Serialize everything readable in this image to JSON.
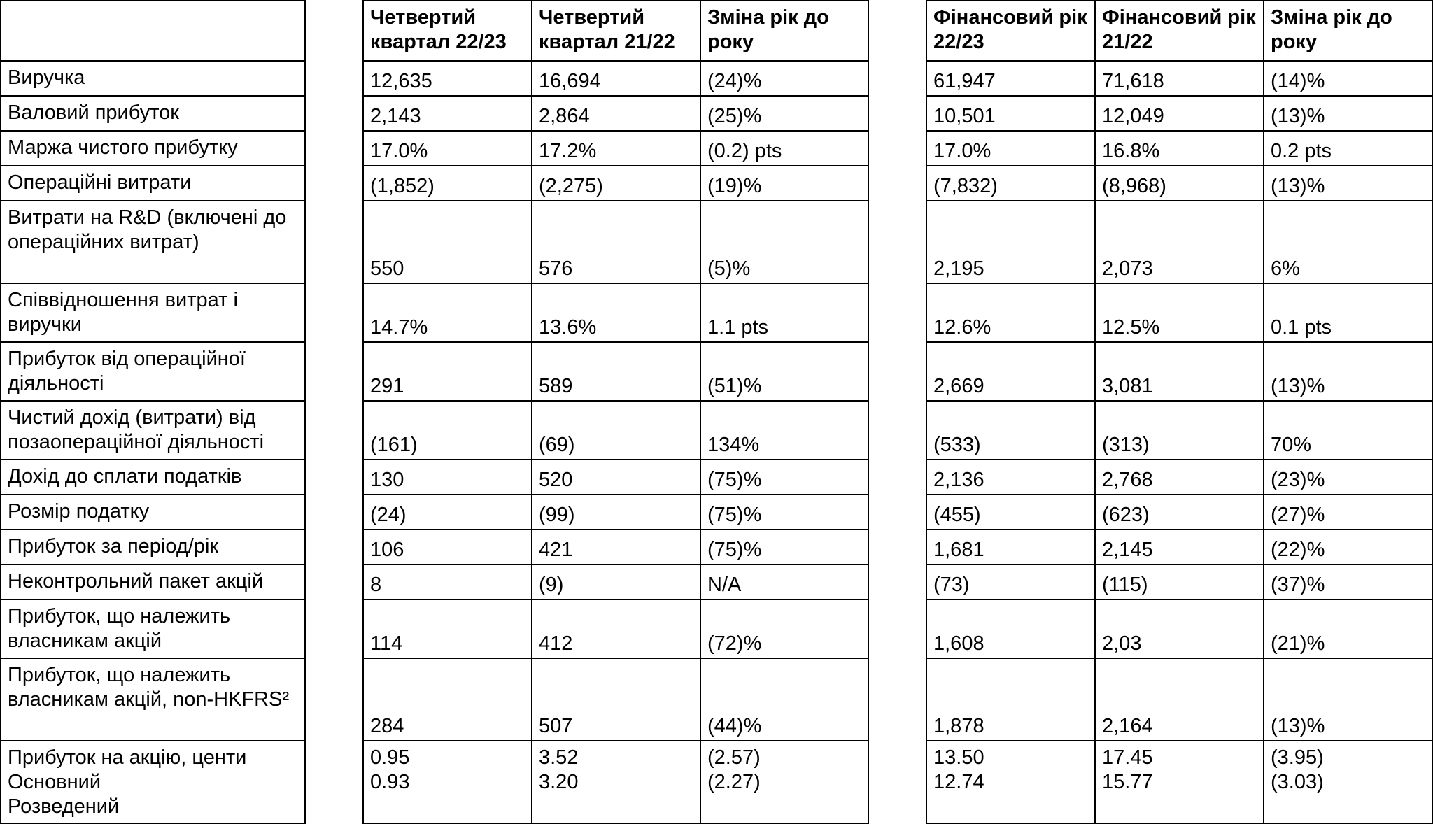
{
  "headers": {
    "q_2223": "Четвертий квартал 22/23",
    "q_2122": "Четвертий квартал 21/22",
    "q_change": "Зміна рік до року",
    "fy_2223": "Фінансовий рік 22/23",
    "fy_2122": "Фінансовий рік 21/22",
    "fy_change": "Зміна рік до року"
  },
  "rows": [
    {
      "label": "Виручка",
      "values": [
        "12,635",
        "16,694",
        "(24)%",
        "61,947",
        "71,618",
        "(14)%"
      ]
    },
    {
      "label": "Валовий прибуток",
      "values": [
        "2,143",
        "2,864",
        "(25)%",
        "10,501",
        "12,049",
        "(13)%"
      ]
    },
    {
      "label": "Маржа чистого прибутку",
      "values": [
        "17.0%",
        "17.2%",
        "(0.2) pts",
        "17.0%",
        "16.8%",
        "0.2 pts"
      ]
    },
    {
      "label": "Операційні витрати",
      "values": [
        "(1,852)",
        "(2,275)",
        "(19)%",
        "(7,832)",
        "(8,968)",
        "(13)%"
      ]
    },
    {
      "label": "Витрати на R&D (включені до операційних витрат)",
      "values": [
        "550",
        "576",
        "(5)%",
        "2,195",
        "2,073",
        "6%"
      ]
    },
    {
      "label": "Співвідношення витрат і виручки",
      "values": [
        "14.7%",
        "13.6%",
        "1.1 pts",
        "12.6%",
        "12.5%",
        "0.1 pts"
      ]
    },
    {
      "label": "Прибуток від операційної діяльності",
      "values": [
        "291",
        "589",
        "(51)%",
        "2,669",
        "3,081",
        "(13)%"
      ]
    },
    {
      "label": "Чистий дохід (витрати) від позаопераційної діяльності",
      "values": [
        "(161)",
        "(69)",
        "134%",
        "(533)",
        "(313)",
        "70%"
      ]
    },
    {
      "label": "Дохід до сплати податків",
      "values": [
        "130",
        "520",
        "(75)%",
        "2,136",
        "2,768",
        "(23)%"
      ]
    },
    {
      "label": "Розмір податку",
      "values": [
        "(24)",
        "(99)",
        "(75)%",
        "(455)",
        "(623)",
        "(27)%"
      ]
    },
    {
      "label": "Прибуток за період/рік",
      "values": [
        "106",
        "421",
        "(75)%",
        "1,681",
        "2,145",
        "(22)%"
      ]
    },
    {
      "label": "Неконтрольний пакет акцій",
      "values": [
        "8",
        "(9)",
        "N/A",
        "(73)",
        "(115)",
        "(37)%"
      ]
    },
    {
      "label": "Прибуток, що належить власникам акцій",
      "values": [
        "114",
        "412",
        "(72)%",
        "1,608",
        "2,03",
        "(21)%"
      ]
    },
    {
      "label": "Прибуток, що належить власникам акцій, non-HKFRS²",
      "values": [
        "284",
        "507",
        "(44)%",
        "1,878",
        "2,164",
        "(13)%"
      ]
    }
  ],
  "eps": {
    "label": "Прибуток на акцію, центи\nОсновний\nРозведений",
    "values": [
      "0.95\n0.93",
      "3.52\n3.20",
      "(2.57)\n(2.27)",
      "13.50\n12.74",
      "17.45\n15.77",
      "(3.95)\n(3.03)"
    ]
  }
}
